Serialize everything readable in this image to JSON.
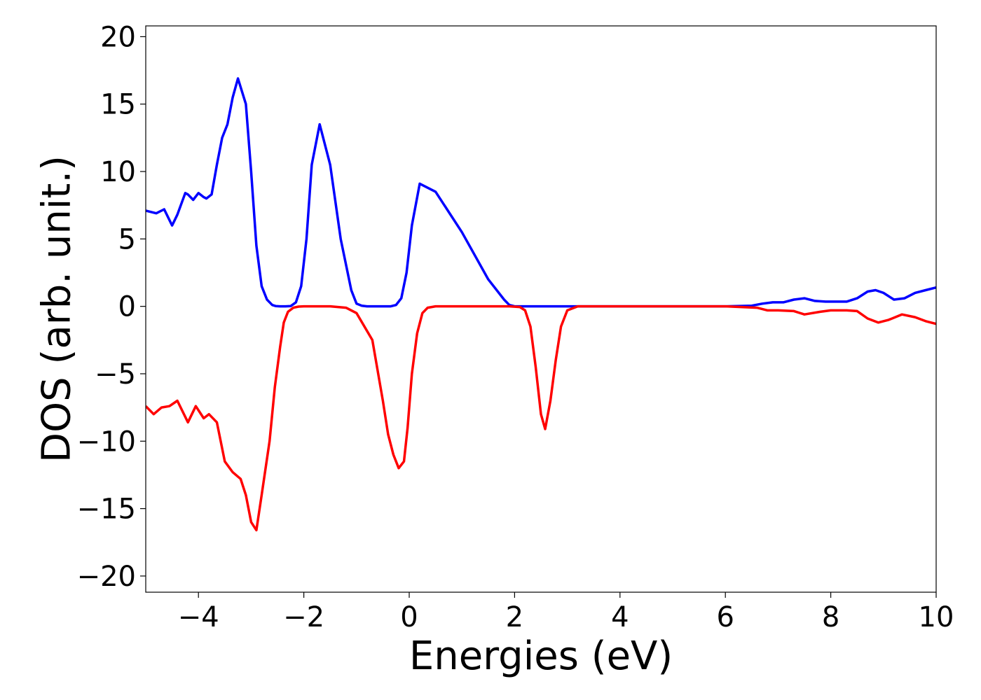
{
  "chart_data": {
    "type": "line",
    "title": "",
    "xlabel": "Energies (eV)",
    "ylabel": "DOS (arb. unit.)",
    "xlim": [
      -5,
      10
    ],
    "ylim": [
      -21.2,
      20.8
    ],
    "grid": false,
    "xticks": [
      -4,
      -2,
      0,
      2,
      4,
      6,
      8,
      10
    ],
    "xtick_labels": [
      "−4",
      "−2",
      "0",
      "2",
      "4",
      "6",
      "8",
      "10"
    ],
    "yticks": [
      20,
      15,
      10,
      5,
      0,
      -5,
      -10,
      -15,
      -20
    ],
    "ytick_labels": [
      "20",
      "15",
      "10",
      "5",
      "0",
      "−5",
      "−10",
      "−15",
      "−20"
    ],
    "series": [
      {
        "color": "#0000ff",
        "x": [
          -5.0,
          -4.8,
          -4.65,
          -4.5,
          -4.4,
          -4.25,
          -4.2,
          -4.1,
          -4.0,
          -3.9,
          -3.85,
          -3.75,
          -3.65,
          -3.55,
          -3.45,
          -3.35,
          -3.25,
          -3.1,
          -3.0,
          -2.9,
          -2.8,
          -2.7,
          -2.6,
          -2.53,
          -2.45,
          -2.35,
          -2.25,
          -2.15,
          -2.05,
          -1.95,
          -1.85,
          -1.7,
          -1.5,
          -1.3,
          -1.1,
          -1.0,
          -0.9,
          -0.8,
          -0.7,
          -0.6,
          -0.52,
          -0.45,
          -0.35,
          -0.25,
          -0.15,
          -0.05,
          0.05,
          0.2,
          0.5,
          1.0,
          1.5,
          1.8,
          1.9,
          2.0,
          2.1,
          2.2,
          2.3,
          2.4,
          2.5,
          2.6,
          2.7,
          2.8,
          2.9,
          3.0,
          3.2,
          4.0,
          5.0,
          6.0,
          6.5,
          6.7,
          6.9,
          7.1,
          7.3,
          7.5,
          7.7,
          7.9,
          8.1,
          8.3,
          8.5,
          8.7,
          8.85,
          9.0,
          9.2,
          9.4,
          9.6,
          9.8,
          10.0
        ],
        "y": [
          7.1,
          6.9,
          7.2,
          6.0,
          6.8,
          8.4,
          8.3,
          7.9,
          8.4,
          8.1,
          8.0,
          8.3,
          10.5,
          12.5,
          13.5,
          15.5,
          16.9,
          15.0,
          10.0,
          4.5,
          1.5,
          0.5,
          0.1,
          0.02,
          0.0,
          0.0,
          0.02,
          0.3,
          1.5,
          5.0,
          10.5,
          13.5,
          10.5,
          5.0,
          1.2,
          0.2,
          0.05,
          0.0,
          0.0,
          0.0,
          0.0,
          0.0,
          0.0,
          0.1,
          0.6,
          2.5,
          6.0,
          9.1,
          8.5,
          5.5,
          2.0,
          0.5,
          0.1,
          0.0,
          0.0,
          0.0,
          0.0,
          0.0,
          0.0,
          0.0,
          0.0,
          0.0,
          0.0,
          0.0,
          0.0,
          0.0,
          0.0,
          0.0,
          0.05,
          0.2,
          0.3,
          0.3,
          0.5,
          0.6,
          0.4,
          0.35,
          0.35,
          0.35,
          0.6,
          1.1,
          1.2,
          1.0,
          0.5,
          0.6,
          1.0,
          1.2,
          1.4
        ]
      },
      {
        "color": "#ff0000",
        "x": [
          -5.0,
          -4.85,
          -4.7,
          -4.55,
          -4.4,
          -4.2,
          -4.05,
          -3.9,
          -3.8,
          -3.65,
          -3.5,
          -3.35,
          -3.2,
          -3.1,
          -3.0,
          -2.9,
          -2.8,
          -2.65,
          -2.55,
          -2.45,
          -2.38,
          -2.3,
          -2.2,
          -2.1,
          -2.0,
          -1.9,
          -1.75,
          -1.5,
          -1.2,
          -1.0,
          -0.7,
          -0.5,
          -0.4,
          -0.3,
          -0.2,
          -0.1,
          -0.03,
          0.05,
          0.15,
          0.25,
          0.35,
          0.5,
          0.8,
          1.2,
          1.6,
          1.9,
          2.1,
          2.2,
          2.3,
          2.4,
          2.5,
          2.58,
          2.68,
          2.78,
          2.88,
          3.0,
          3.2,
          4.0,
          5.0,
          6.0,
          6.6,
          6.8,
          7.0,
          7.3,
          7.5,
          7.8,
          8.0,
          8.3,
          8.5,
          8.7,
          8.9,
          9.1,
          9.35,
          9.6,
          9.8,
          10.0
        ],
        "y": [
          -7.4,
          -8.0,
          -7.5,
          -7.4,
          -7.0,
          -8.6,
          -7.4,
          -8.3,
          -8.0,
          -8.6,
          -11.5,
          -12.3,
          -12.8,
          -14.0,
          -16.0,
          -16.6,
          -14.0,
          -10.0,
          -6.0,
          -3.0,
          -1.2,
          -0.4,
          -0.1,
          -0.02,
          0.0,
          0.0,
          0.0,
          0.0,
          -0.1,
          -0.5,
          -2.5,
          -7.0,
          -9.5,
          -11.0,
          -12.0,
          -11.5,
          -9.0,
          -5.0,
          -2.0,
          -0.5,
          -0.1,
          0.0,
          0.0,
          0.0,
          0.0,
          0.0,
          -0.05,
          -0.3,
          -1.5,
          -4.5,
          -8.0,
          -9.1,
          -7.0,
          -4.0,
          -1.5,
          -0.3,
          0.0,
          0.0,
          0.0,
          0.0,
          -0.1,
          -0.3,
          -0.3,
          -0.35,
          -0.6,
          -0.4,
          -0.3,
          -0.3,
          -0.35,
          -0.9,
          -1.2,
          -1.0,
          -0.6,
          -0.8,
          -1.1,
          -1.3
        ]
      }
    ]
  }
}
